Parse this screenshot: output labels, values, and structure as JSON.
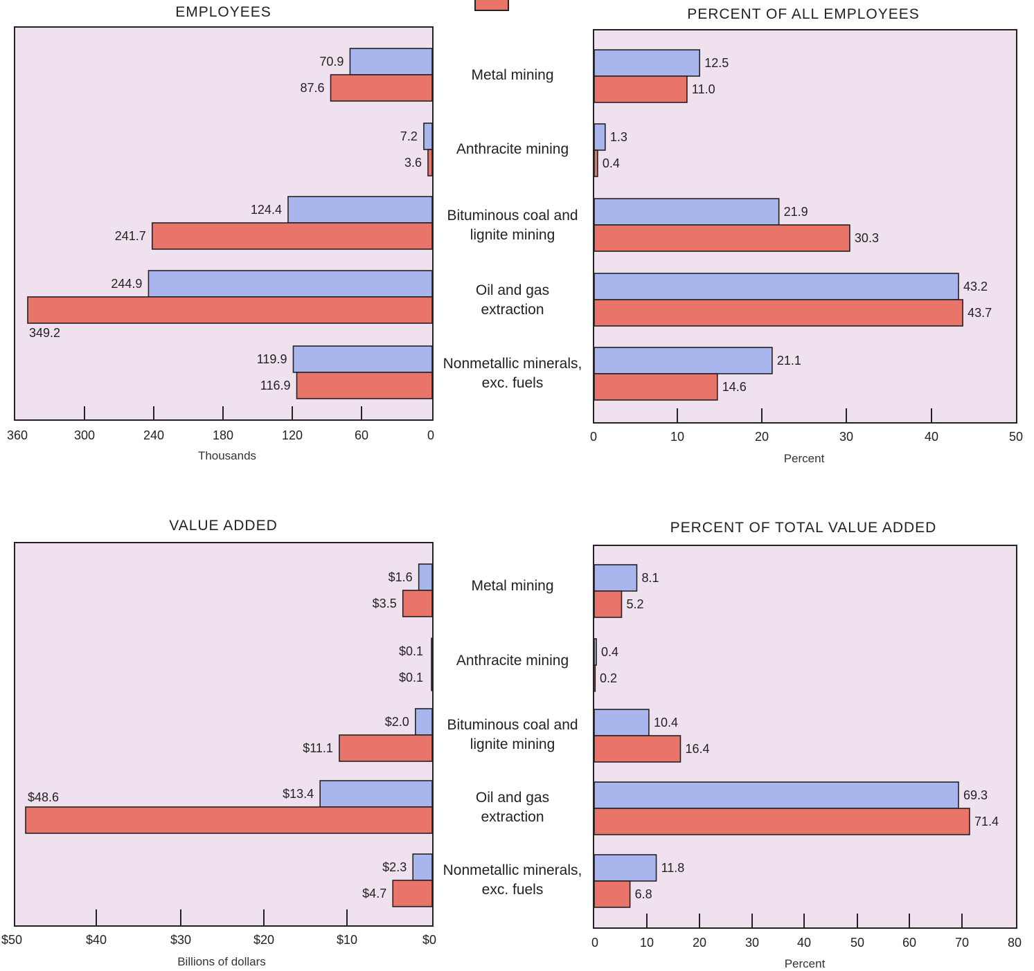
{
  "colors": {
    "series_a": "#a9b6ee",
    "series_b": "#e8746a",
    "panel_bg": "#f0e1ef"
  },
  "categories": [
    "Metal mining",
    "Anthracite mining",
    "Bituminous coal and\nlignite mining",
    "Oil and gas\nextraction",
    "Nonmetallic minerals,\nexc. fuels"
  ],
  "chart_data": [
    {
      "type": "bar",
      "title": "EMPLOYEES",
      "xlabel": "Thousands",
      "orientation": "horizontal-leftward",
      "xlim": [
        0,
        360
      ],
      "ticks": [
        "360",
        "300",
        "240",
        "180",
        "120",
        "60",
        "0"
      ],
      "series": [
        {
          "values": [
            70.9,
            7.2,
            124.4,
            244.9,
            119.9
          ],
          "labels": [
            "70.9",
            "7.2",
            "124.4",
            "244.9",
            "119.9"
          ]
        },
        {
          "values": [
            87.6,
            3.6,
            241.7,
            349.2,
            116.9
          ],
          "labels": [
            "87.6",
            "3.6",
            "241.7",
            "349.2",
            "116.9"
          ]
        }
      ]
    },
    {
      "type": "bar",
      "title": "PERCENT OF ALL EMPLOYEES",
      "xlabel": "Percent",
      "orientation": "horizontal-rightward",
      "xlim": [
        0,
        50
      ],
      "ticks": [
        "0",
        "10",
        "20",
        "30",
        "40",
        "50"
      ],
      "series": [
        {
          "values": [
            12.5,
            1.3,
            21.9,
            43.2,
            21.1
          ],
          "labels": [
            "12.5",
            "1.3",
            "21.9",
            "43.2",
            "21.1"
          ]
        },
        {
          "values": [
            11.0,
            0.4,
            30.3,
            43.7,
            14.6
          ],
          "labels": [
            "11.0",
            "0.4",
            "30.3",
            "43.7",
            "14.6"
          ]
        }
      ]
    },
    {
      "type": "bar",
      "title": "VALUE ADDED",
      "xlabel": "Billions of dollars",
      "orientation": "horizontal-leftward",
      "xlim": [
        0,
        50
      ],
      "ticks": [
        "$50",
        "$40",
        "$30",
        "$20",
        "$10",
        "$0"
      ],
      "series": [
        {
          "values": [
            1.6,
            0.1,
            2.0,
            13.4,
            2.3
          ],
          "labels": [
            "$1.6",
            "$0.1",
            "$2.0",
            "$13.4",
            "$2.3"
          ]
        },
        {
          "values": [
            3.5,
            0.1,
            11.1,
            48.6,
            4.7
          ],
          "labels": [
            "$3.5",
            "$0.1",
            "$11.1",
            "$48.6",
            "$4.7"
          ]
        }
      ]
    },
    {
      "type": "bar",
      "title": "PERCENT OF TOTAL VALUE ADDED",
      "xlabel": "Percent",
      "orientation": "horizontal-rightward",
      "xlim": [
        0,
        80
      ],
      "ticks": [
        "0",
        "10",
        "20",
        "30",
        "40",
        "50",
        "60",
        "70",
        "80"
      ],
      "series": [
        {
          "values": [
            8.1,
            0.4,
            10.4,
            69.3,
            11.8
          ],
          "labels": [
            "8.1",
            "0.4",
            "10.4",
            "69.3",
            "11.8"
          ]
        },
        {
          "values": [
            5.2,
            0.2,
            16.4,
            71.4,
            6.8
          ],
          "labels": [
            "5.2",
            "0.2",
            "16.4",
            "71.4",
            "6.8"
          ]
        }
      ]
    }
  ]
}
